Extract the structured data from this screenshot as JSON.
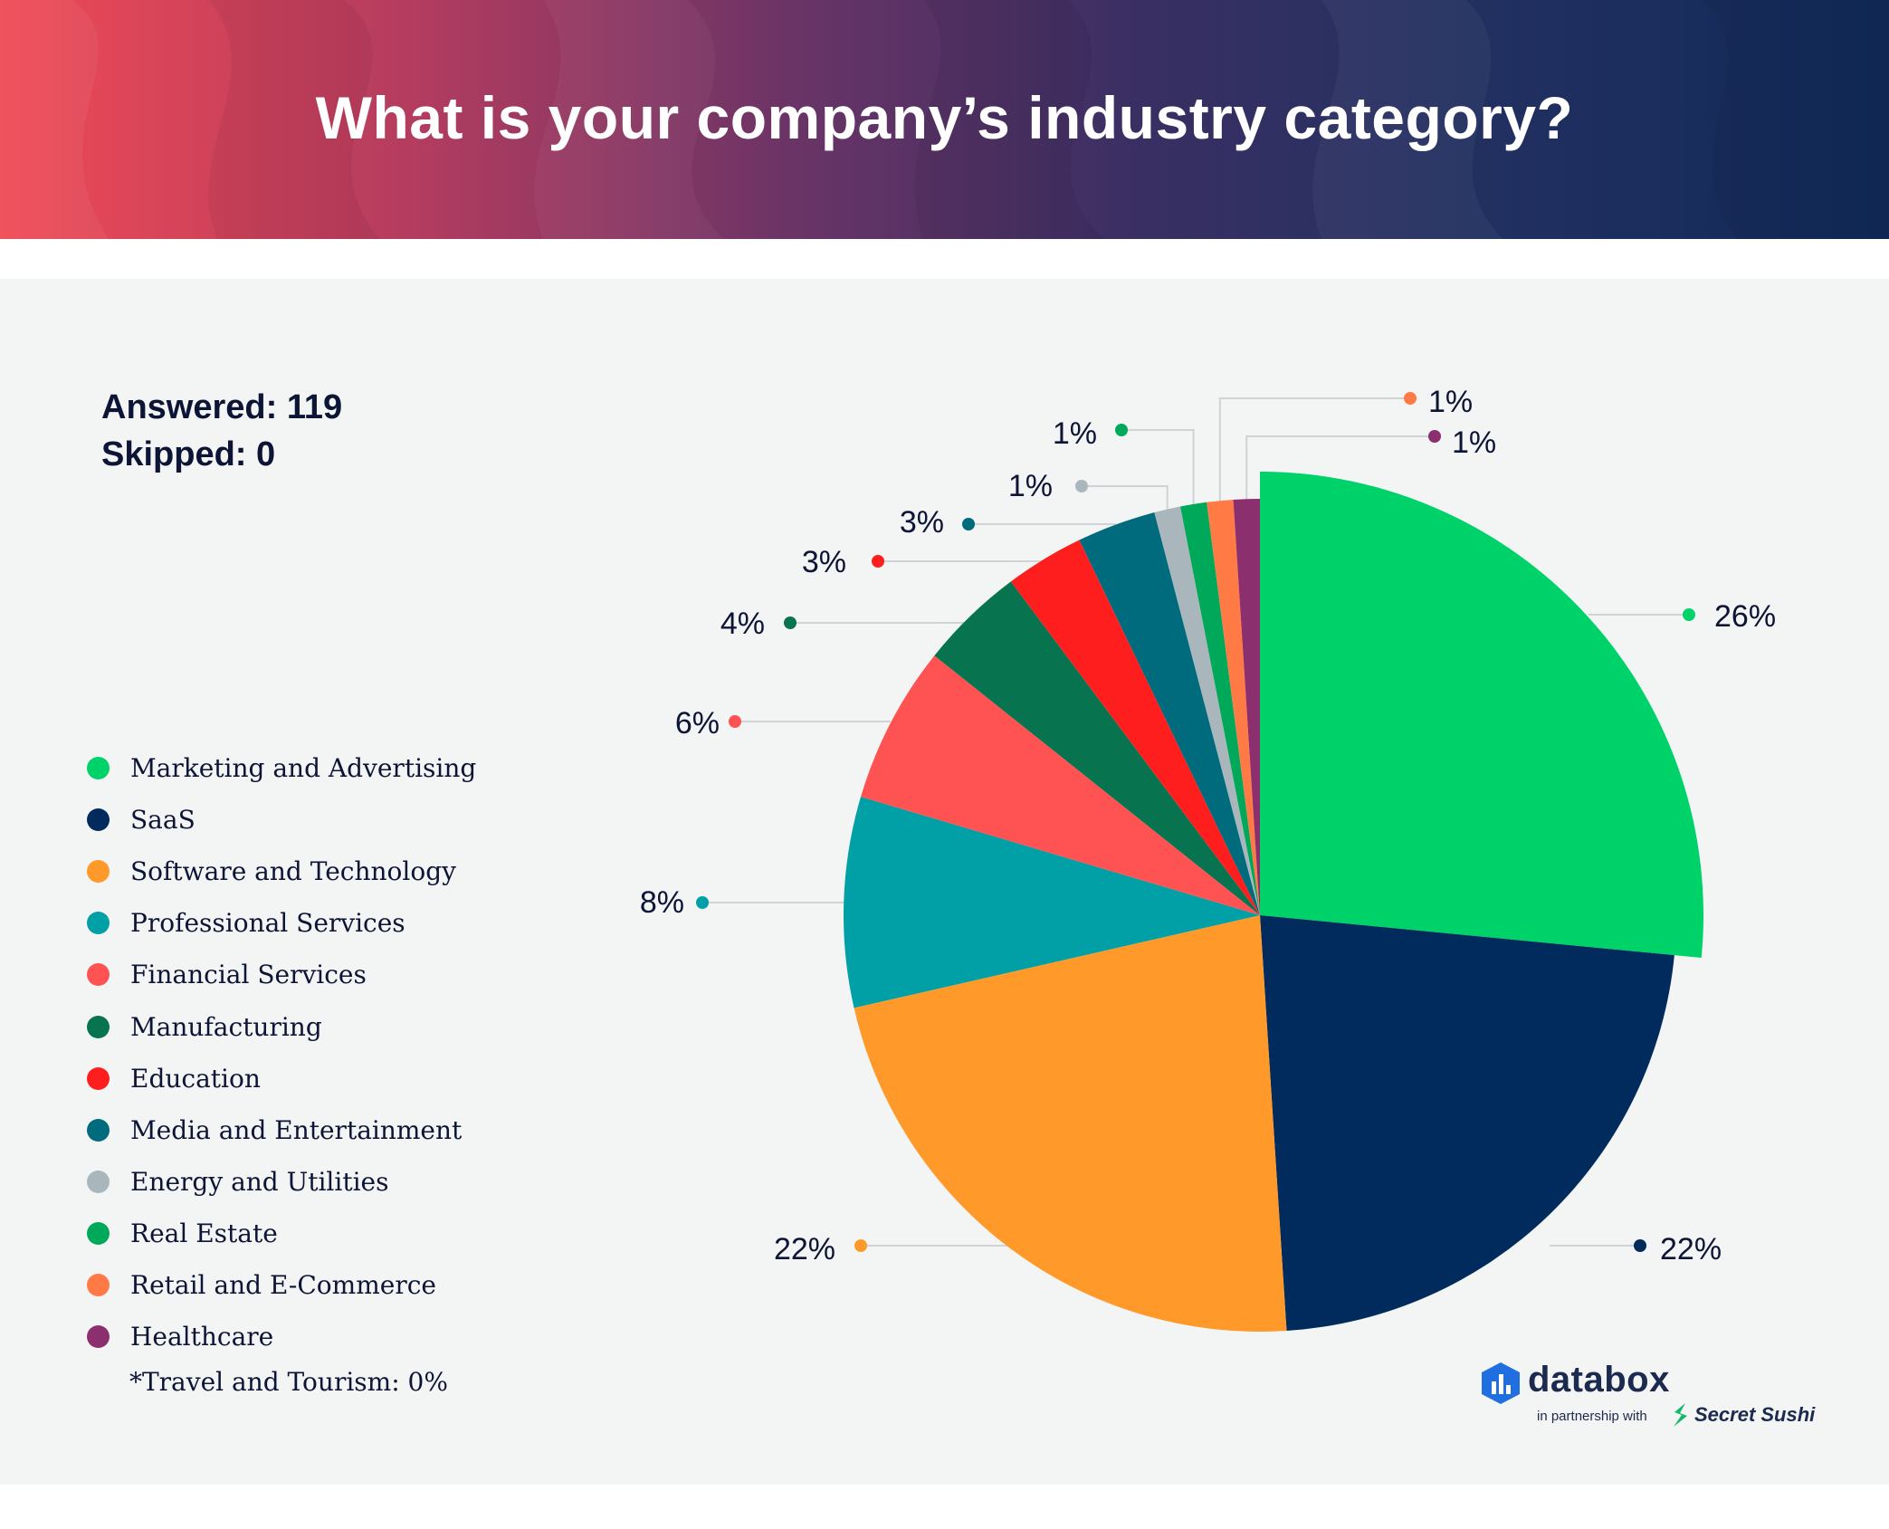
{
  "header": {
    "title": "What is your company’s industry category?"
  },
  "stats": {
    "answered": "Answered: 119",
    "skipped": "Skipped: 0"
  },
  "footnote": "*Travel and Tourism: 0%",
  "branding": {
    "name": "databox",
    "partnership": "in partnership with",
    "partner": "Secret Sushi"
  },
  "chart_data": {
    "type": "pie",
    "title": "What is your company’s industry category?",
    "slices": [
      {
        "label": "Marketing and Advertising",
        "value": 26,
        "display": "26%",
        "color": "#00d26a"
      },
      {
        "label": "SaaS",
        "value": 22,
        "display": "22%",
        "color": "#002b5c"
      },
      {
        "label": "Software and Technology",
        "value": 22,
        "display": "22%",
        "color": "#ff9a2a"
      },
      {
        "label": "Professional Services",
        "value": 8,
        "display": "8%",
        "color": "#00a0a6"
      },
      {
        "label": "Financial Services",
        "value": 6,
        "display": "6%",
        "color": "#ff5252"
      },
      {
        "label": "Manufacturing",
        "value": 4,
        "display": "4%",
        "color": "#07734f"
      },
      {
        "label": "Education",
        "value": 3,
        "display": "3%",
        "color": "#ff1e1e"
      },
      {
        "label": "Media and Entertainment",
        "value": 3,
        "display": "3%",
        "color": "#006b7d"
      },
      {
        "label": "Energy and Utilities",
        "value": 1,
        "display": "1%",
        "color": "#a9b7bd"
      },
      {
        "label": "Real Estate",
        "value": 1,
        "display": "1%",
        "color": "#00a85a"
      },
      {
        "label": "Retail and E-Commerce",
        "value": 1,
        "display": "1%",
        "color": "#ff7a45"
      },
      {
        "label": "Healthcare",
        "value": 1,
        "display": "1%",
        "color": "#8b2f6f"
      }
    ],
    "legend_position": "left",
    "legend_note": "*Travel and Tourism: 0%"
  }
}
